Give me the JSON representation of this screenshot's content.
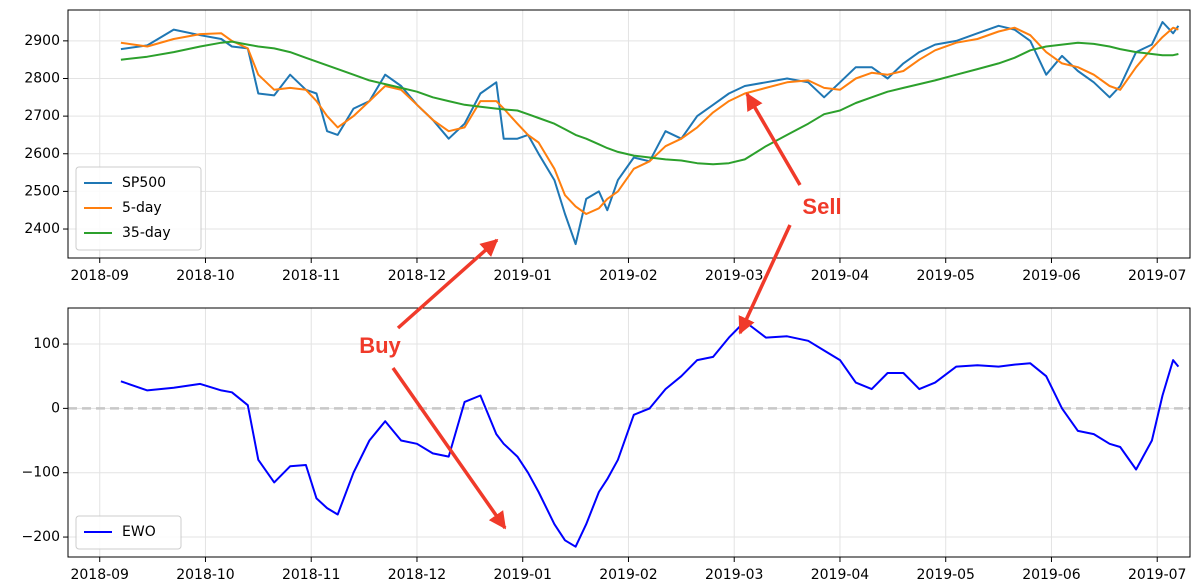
{
  "chart_data": [
    {
      "type": "line",
      "grid": true,
      "legend": "lower left",
      "xlim": [
        -0.3,
        10.31
      ],
      "xticks": [
        {
          "value": 0,
          "label": "2018-09"
        },
        {
          "value": 1,
          "label": "2018-10"
        },
        {
          "value": 2,
          "label": "2018-11"
        },
        {
          "value": 3,
          "label": "2018-12"
        },
        {
          "value": 4,
          "label": "2019-01"
        },
        {
          "value": 5,
          "label": "2019-02"
        },
        {
          "value": 6,
          "label": "2019-03"
        },
        {
          "value": 7,
          "label": "2019-04"
        },
        {
          "value": 8,
          "label": "2019-05"
        },
        {
          "value": 9,
          "label": "2019-06"
        },
        {
          "value": 10,
          "label": "2019-07"
        }
      ],
      "ylim": [
        2323,
        2982
      ],
      "yticks": [
        2400,
        2500,
        2600,
        2700,
        2800,
        2900
      ],
      "x": [
        0.2,
        0.45,
        0.7,
        0.95,
        1.15,
        1.25,
        1.4,
        1.5,
        1.65,
        1.8,
        1.95,
        2.05,
        2.15,
        2.25,
        2.4,
        2.55,
        2.7,
        2.85,
        3.0,
        3.15,
        3.3,
        3.45,
        3.6,
        3.75,
        3.82,
        3.95,
        4.05,
        4.15,
        4.3,
        4.4,
        4.5,
        4.6,
        4.72,
        4.8,
        4.9,
        5.05,
        5.2,
        5.35,
        5.5,
        5.65,
        5.8,
        5.95,
        6.1,
        6.3,
        6.5,
        6.7,
        6.85,
        7.0,
        7.15,
        7.3,
        7.45,
        7.6,
        7.75,
        7.9,
        8.1,
        8.3,
        8.5,
        8.65,
        8.8,
        8.95,
        9.1,
        9.25,
        9.4,
        9.55,
        9.65,
        9.8,
        9.95,
        10.05,
        10.15,
        10.2
      ],
      "series": [
        {
          "name": "SP500",
          "color": "#1f77b4",
          "values": [
            2878,
            2888,
            2930,
            2915,
            2905,
            2885,
            2880,
            2760,
            2755,
            2810,
            2770,
            2760,
            2660,
            2650,
            2720,
            2740,
            2810,
            2780,
            2730,
            2690,
            2640,
            2680,
            2760,
            2790,
            2640,
            2640,
            2650,
            2600,
            2530,
            2440,
            2360,
            2480,
            2500,
            2450,
            2530,
            2590,
            2580,
            2660,
            2640,
            2700,
            2730,
            2760,
            2780,
            2790,
            2800,
            2790,
            2750,
            2790,
            2830,
            2830,
            2800,
            2840,
            2870,
            2890,
            2900,
            2920,
            2940,
            2930,
            2900,
            2810,
            2860,
            2820,
            2790,
            2750,
            2780,
            2870,
            2890,
            2950,
            2920,
            2940
          ]
        },
        {
          "name": "5-day",
          "color": "#ff7f0e",
          "values": [
            2895,
            2885,
            2905,
            2918,
            2920,
            2900,
            2880,
            2810,
            2770,
            2775,
            2770,
            2740,
            2700,
            2670,
            2700,
            2740,
            2780,
            2770,
            2730,
            2690,
            2660,
            2670,
            2740,
            2740,
            2720,
            2680,
            2650,
            2630,
            2560,
            2490,
            2460,
            2440,
            2455,
            2480,
            2500,
            2560,
            2580,
            2620,
            2640,
            2670,
            2710,
            2740,
            2760,
            2775,
            2790,
            2795,
            2775,
            2770,
            2800,
            2815,
            2810,
            2820,
            2850,
            2875,
            2895,
            2905,
            2925,
            2935,
            2915,
            2870,
            2840,
            2830,
            2810,
            2780,
            2770,
            2830,
            2880,
            2910,
            2935,
            2930
          ]
        },
        {
          "name": "35-day",
          "color": "#2ca02c",
          "values": [
            2850,
            2858,
            2870,
            2885,
            2895,
            2898,
            2890,
            2885,
            2880,
            2870,
            2855,
            2845,
            2835,
            2825,
            2810,
            2795,
            2785,
            2775,
            2765,
            2750,
            2740,
            2730,
            2725,
            2720,
            2718,
            2715,
            2705,
            2695,
            2680,
            2665,
            2650,
            2640,
            2625,
            2615,
            2605,
            2595,
            2590,
            2585,
            2582,
            2575,
            2572,
            2575,
            2585,
            2620,
            2650,
            2680,
            2705,
            2715,
            2735,
            2750,
            2765,
            2775,
            2785,
            2795,
            2810,
            2825,
            2840,
            2855,
            2875,
            2885,
            2890,
            2895,
            2892,
            2885,
            2878,
            2870,
            2865,
            2862,
            2862,
            2865
          ]
        }
      ]
    },
    {
      "type": "line",
      "grid": true,
      "legend": "lower left",
      "reference_line": 0,
      "xlim": [
        -0.3,
        10.31
      ],
      "xticks": [
        {
          "value": 0,
          "label": "2018-09"
        },
        {
          "value": 1,
          "label": "2018-10"
        },
        {
          "value": 2,
          "label": "2018-11"
        },
        {
          "value": 3,
          "label": "2018-12"
        },
        {
          "value": 4,
          "label": "2019-01"
        },
        {
          "value": 5,
          "label": "2019-02"
        },
        {
          "value": 6,
          "label": "2019-03"
        },
        {
          "value": 7,
          "label": "2019-04"
        },
        {
          "value": 8,
          "label": "2019-05"
        },
        {
          "value": 9,
          "label": "2019-06"
        },
        {
          "value": 10,
          "label": "2019-07"
        }
      ],
      "ylim": [
        -231,
        156
      ],
      "yticks": [
        {
          "value": -200,
          "label": "−200"
        },
        {
          "value": -100,
          "label": "−100"
        },
        0,
        100
      ],
      "x": [
        0.2,
        0.45,
        0.7,
        0.95,
        1.15,
        1.25,
        1.4,
        1.5,
        1.65,
        1.8,
        1.95,
        2.05,
        2.15,
        2.25,
        2.4,
        2.55,
        2.7,
        2.85,
        3.0,
        3.15,
        3.3,
        3.45,
        3.6,
        3.75,
        3.82,
        3.95,
        4.05,
        4.15,
        4.3,
        4.4,
        4.5,
        4.6,
        4.72,
        4.8,
        4.9,
        5.05,
        5.2,
        5.35,
        5.5,
        5.65,
        5.8,
        5.95,
        6.1,
        6.3,
        6.5,
        6.7,
        6.85,
        7.0,
        7.15,
        7.3,
        7.45,
        7.6,
        7.75,
        7.9,
        8.1,
        8.3,
        8.5,
        8.65,
        8.8,
        8.95,
        9.1,
        9.25,
        9.4,
        9.55,
        9.65,
        9.8,
        9.95,
        10.05,
        10.15,
        10.2
      ],
      "series": [
        {
          "name": "EWO",
          "color": "#0000ff",
          "values": [
            42,
            28,
            32,
            38,
            28,
            25,
            5,
            -80,
            -115,
            -90,
            -88,
            -140,
            -155,
            -165,
            -100,
            -50,
            -20,
            -50,
            -55,
            -70,
            -75,
            10,
            20,
            -40,
            -55,
            -75,
            -100,
            -130,
            -180,
            -205,
            -215,
            -180,
            -130,
            -110,
            -80,
            -10,
            0,
            30,
            50,
            75,
            80,
            110,
            135,
            110,
            112,
            105,
            90,
            75,
            40,
            30,
            55,
            55,
            30,
            40,
            65,
            67,
            65,
            68,
            70,
            50,
            0,
            -35,
            -40,
            -55,
            -60,
            -95,
            -50,
            20,
            75,
            65
          ]
        }
      ]
    }
  ],
  "annotations": [
    "Sell",
    "Buy"
  ]
}
